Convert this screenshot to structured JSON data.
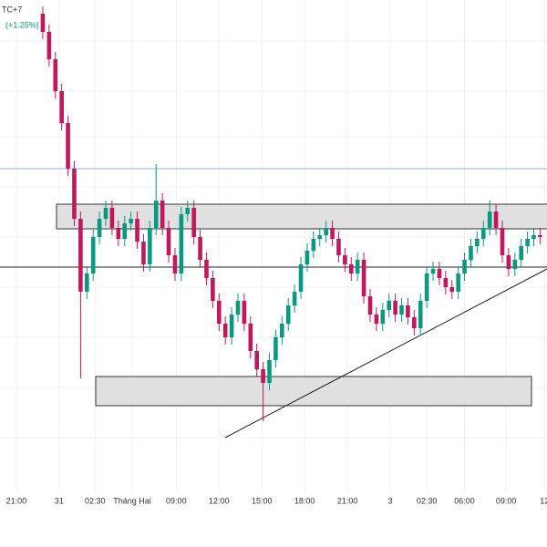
{
  "chart_data": {
    "type": "candlestick",
    "header": "TC+7",
    "change": "(+1.25%)",
    "up_color": "#089981",
    "down_color": "#c2185b",
    "open": [
      585,
      565,
      535,
      500,
      465,
      415,
      360,
      280,
      300,
      340,
      360,
      372,
      350,
      338,
      355,
      360,
      335,
      310,
      350,
      380,
      350,
      320,
      300,
      365,
      372,
      340,
      315,
      295,
      270,
      245,
      230,
      255,
      270,
      245,
      215,
      195,
      180,
      205,
      230,
      245,
      265,
      280,
      310,
      325,
      338,
      342,
      350,
      338,
      320,
      310,
      300,
      315,
      275,
      255,
      245,
      260,
      270,
      255,
      265,
      252,
      240,
      270,
      300,
      305,
      295,
      285,
      280,
      300,
      315,
      330,
      338,
      350,
      368,
      350,
      320,
      305,
      315,
      330,
      338,
      342
    ],
    "high": [
      593,
      573,
      543,
      508,
      473,
      423,
      368,
      308,
      348,
      368,
      380,
      380,
      358,
      363,
      368,
      368,
      343,
      358,
      420,
      388,
      358,
      328,
      373,
      380,
      380,
      348,
      323,
      303,
      278,
      253,
      263,
      278,
      278,
      253,
      223,
      203,
      213,
      238,
      253,
      273,
      288,
      318,
      333,
      346,
      350,
      358,
      358,
      346,
      328,
      318,
      323,
      323,
      283,
      263,
      268,
      278,
      278,
      273,
      273,
      260,
      278,
      308,
      313,
      313,
      303,
      293,
      308,
      323,
      338,
      346,
      358,
      380,
      376,
      358,
      328,
      323,
      338,
      346,
      350,
      350
    ],
    "low": [
      557,
      527,
      492,
      457,
      407,
      352,
      185,
      272,
      292,
      332,
      352,
      342,
      330,
      330,
      347,
      327,
      302,
      302,
      342,
      342,
      312,
      292,
      292,
      357,
      332,
      307,
      287,
      262,
      237,
      222,
      222,
      247,
      237,
      207,
      187,
      138,
      172,
      197,
      222,
      237,
      257,
      272,
      302,
      317,
      330,
      334,
      330,
      312,
      302,
      292,
      292,
      267,
      247,
      237,
      237,
      252,
      247,
      247,
      244,
      232,
      232,
      262,
      292,
      287,
      277,
      272,
      272,
      292,
      307,
      322,
      330,
      342,
      342,
      312,
      297,
      297,
      307,
      322,
      330,
      332
    ],
    "close": [
      565,
      535,
      500,
      465,
      415,
      360,
      280,
      300,
      340,
      360,
      372,
      350,
      338,
      355,
      360,
      335,
      310,
      350,
      380,
      350,
      320,
      300,
      365,
      372,
      340,
      315,
      295,
      270,
      245,
      230,
      255,
      270,
      245,
      215,
      195,
      180,
      205,
      230,
      245,
      265,
      280,
      310,
      325,
      338,
      342,
      350,
      338,
      320,
      310,
      300,
      315,
      275,
      255,
      245,
      260,
      270,
      255,
      265,
      252,
      240,
      270,
      300,
      305,
      295,
      285,
      280,
      300,
      315,
      330,
      338,
      350,
      368,
      350,
      320,
      305,
      315,
      330,
      338,
      342,
      340
    ],
    "xlim": [
      -6.8,
      80.1
    ],
    "ylim": [
      0,
      600
    ],
    "xticks": [
      {
        "value": -4.2,
        "label": "21:00"
      },
      {
        "value": 2.6,
        "label": "31"
      },
      {
        "value": 8.3,
        "label": "02:30"
      },
      {
        "value": 14.2,
        "label": "Tháng Hai"
      },
      {
        "value": 21.2,
        "label": "09:00"
      },
      {
        "value": 28,
        "label": "12:00"
      },
      {
        "value": 34.8,
        "label": "15:00"
      },
      {
        "value": 41.6,
        "label": "18:00"
      },
      {
        "value": 48.4,
        "label": "21:00"
      },
      {
        "value": 55.2,
        "label": "3"
      },
      {
        "value": 61,
        "label": "02:30"
      },
      {
        "value": 67,
        "label": "06:00"
      },
      {
        "value": 73.6,
        "label": "09:00"
      },
      {
        "value": 79.7,
        "label": "12"
      }
    ],
    "grid": true
  }
}
